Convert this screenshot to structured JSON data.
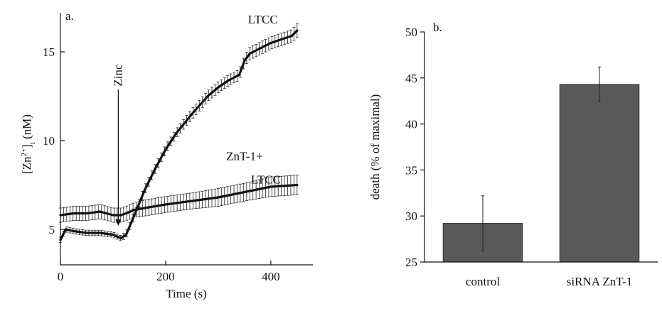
{
  "chart_data": [
    {
      "type": "line",
      "panel_label": "a.",
      "xlabel": "Time (s)",
      "ylabel": "[Zn2+]i (nM)",
      "ylabel_parts": {
        "base": "[Zn",
        "sup": "2+",
        "close": "]",
        "sub": "i",
        "unit": " (nM)"
      },
      "xlim": [
        0,
        480
      ],
      "ylim": [
        3,
        17.2
      ],
      "xticks": [
        0,
        200,
        400
      ],
      "yticks": [
        5,
        10,
        15
      ],
      "annotations": [
        {
          "text": "Zinc",
          "x": 110,
          "y_from": 12.8,
          "y_to": 5.2
        }
      ],
      "series": [
        {
          "name": "LTCC",
          "label_at": [
            385,
            16.6
          ],
          "x": [
            0,
            10,
            25,
            50,
            75,
            100,
            115,
            125,
            135,
            145,
            160,
            180,
            200,
            220,
            250,
            280,
            300,
            320,
            340,
            350,
            360,
            380,
            400,
            420,
            440,
            450
          ],
          "values": [
            4.4,
            5.0,
            4.9,
            4.8,
            4.8,
            4.7,
            4.5,
            4.7,
            5.4,
            6.1,
            7.2,
            8.4,
            9.5,
            10.4,
            11.5,
            12.5,
            13.0,
            13.4,
            13.7,
            14.5,
            14.9,
            15.2,
            15.5,
            15.7,
            15.9,
            16.2
          ],
          "error": [
            0.15,
            0.15,
            0.15,
            0.15,
            0.15,
            0.15,
            0.15,
            0.2,
            0.2,
            0.2,
            0.25,
            0.25,
            0.25,
            0.25,
            0.3,
            0.3,
            0.3,
            0.3,
            0.3,
            0.3,
            0.35,
            0.35,
            0.35,
            0.35,
            0.35,
            0.4
          ]
        },
        {
          "name": "ZnT-1+ LTCC",
          "label_lines": [
            "ZnT-1+",
            "LTCC"
          ],
          "label_at": [
            350,
            8.9
          ],
          "x": [
            0,
            25,
            50,
            75,
            100,
            115,
            125,
            140,
            160,
            200,
            250,
            300,
            350,
            400,
            450
          ],
          "values": [
            5.8,
            5.9,
            5.9,
            6.0,
            5.8,
            5.8,
            5.9,
            6.1,
            6.2,
            6.4,
            6.6,
            6.8,
            7.1,
            7.4,
            7.5
          ],
          "error": [
            0.4,
            0.4,
            0.4,
            0.4,
            0.4,
            0.4,
            0.4,
            0.4,
            0.45,
            0.45,
            0.45,
            0.5,
            0.5,
            0.55,
            0.55
          ]
        }
      ]
    },
    {
      "type": "bar",
      "panel_label": "b.",
      "ylabel": "death (% of maximal)",
      "categories": [
        "control",
        "siRNA ZnT-1"
      ],
      "values": [
        29.2,
        44.3
      ],
      "error": [
        3.0,
        1.9
      ],
      "ylim": [
        25,
        50
      ],
      "yticks": [
        25,
        30,
        35,
        40,
        45,
        50
      ],
      "bar_color": "#595959"
    }
  ]
}
